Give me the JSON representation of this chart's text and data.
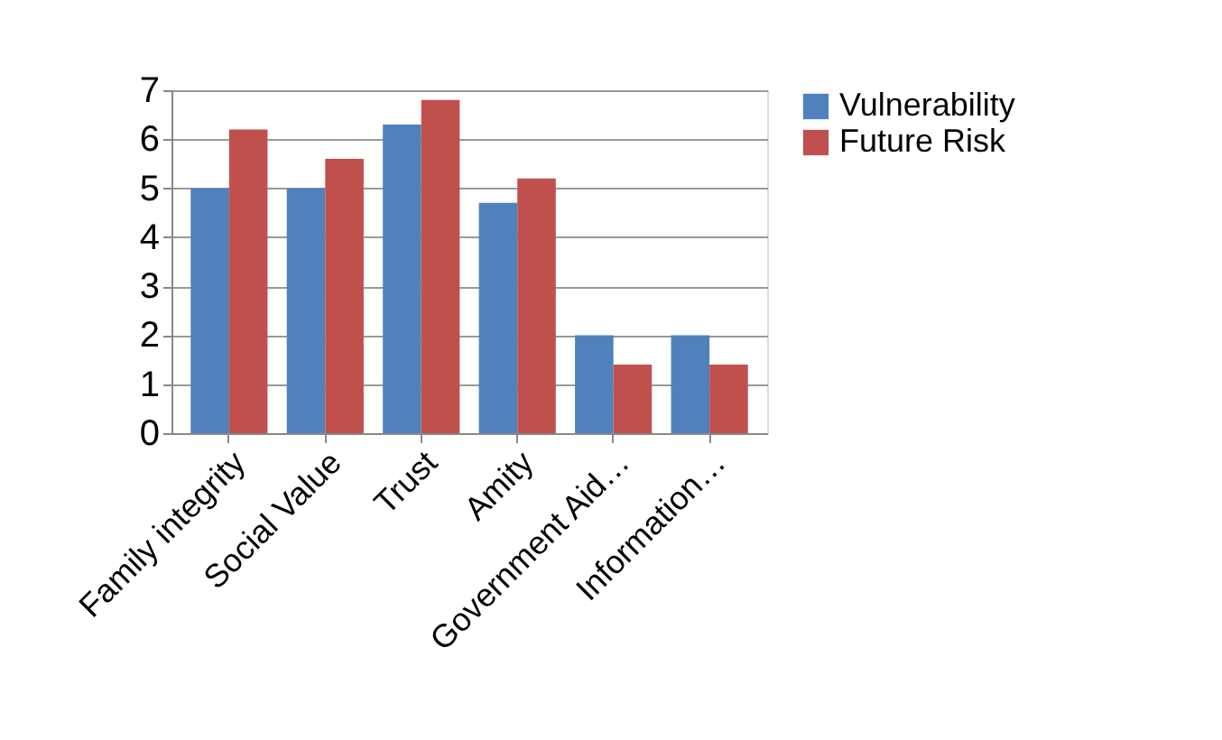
{
  "chart_data": {
    "type": "bar",
    "categories": [
      "Family integrity",
      "Social Value",
      "Trust",
      "Amity",
      "Government Aid…",
      "Information…"
    ],
    "series": [
      {
        "name": "Vulnerability",
        "color": "#4f81bd",
        "values": [
          5.0,
          5.0,
          6.3,
          4.7,
          2.0,
          2.0
        ]
      },
      {
        "name": "Future Risk",
        "color": "#c0504d",
        "values": [
          6.2,
          5.6,
          6.8,
          5.2,
          1.4,
          1.4
        ]
      }
    ],
    "ylim": [
      0,
      7
    ],
    "yticks": [
      0,
      1,
      2,
      3,
      4,
      5,
      6,
      7
    ],
    "grid": "y",
    "legend": "right"
  }
}
